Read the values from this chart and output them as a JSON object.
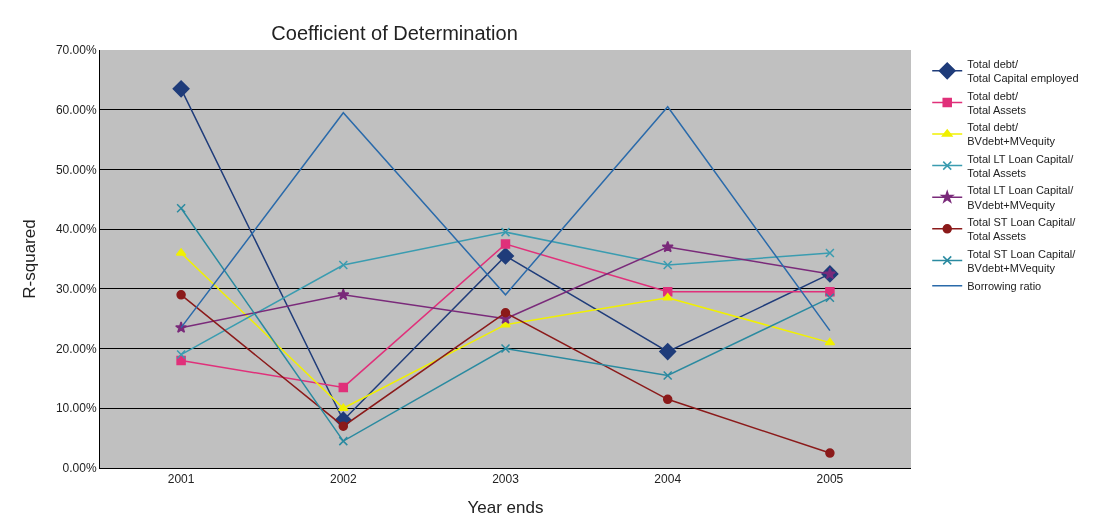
{
  "chart_data": {
    "type": "line",
    "title": "Coefficient of Determination",
    "xlabel": "Year ends",
    "ylabel": "R-squared",
    "categories": [
      "2001",
      "2002",
      "2003",
      "2004",
      "2005"
    ],
    "series": [
      {
        "name": "Total debt/ Total Capital employed",
        "color": "#1f3c7a",
        "marker": "diamond",
        "values": [
          63.5,
          8,
          35.5,
          19.5,
          32.5
        ]
      },
      {
        "name": "Total debt/ Total Assets",
        "color": "#e0307a",
        "marker": "square",
        "values": [
          18,
          13.5,
          37.5,
          29.5,
          29.5
        ]
      },
      {
        "name": "Total debt/ BVdebt+MVequity",
        "color": "#f0f000",
        "marker": "triangle",
        "values": [
          36,
          10,
          24,
          28.5,
          21
        ]
      },
      {
        "name": "Total LT Loan Capital/ Total Assets",
        "color": "#3a9cb0",
        "marker": "cross",
        "values": [
          19,
          34,
          39.5,
          34,
          36
        ]
      },
      {
        "name": "Total LT Loan Capital/ BVdebt+MVequity",
        "color": "#7a2a7a",
        "marker": "star",
        "values": [
          23.5,
          29,
          25,
          37,
          32.5
        ]
      },
      {
        "name": "Total ST Loan Capital/ Total Assets",
        "color": "#8b1a1a",
        "marker": "circle",
        "values": [
          29,
          7,
          26,
          11.5,
          2.5
        ]
      },
      {
        "name": "Total ST Loan Capital/ BVdebt+MVequity",
        "color": "#2a8aa0",
        "marker": "cross",
        "values": [
          43.5,
          4.5,
          20,
          15.5,
          28.5
        ]
      },
      {
        "name": "Borrowing ratio",
        "color": "#2a6aaa",
        "marker": "none",
        "values": [
          23.5,
          59.5,
          29,
          60.5,
          23
        ]
      }
    ],
    "ylim": [
      0,
      70
    ],
    "yticks": [
      {
        "value": 0,
        "label": "0.00%"
      },
      {
        "value": 10,
        "label": "10.00%"
      },
      {
        "value": 20,
        "label": "20.00%"
      },
      {
        "value": 30,
        "label": "30.00%"
      },
      {
        "value": 40,
        "label": "40.00%"
      },
      {
        "value": 50,
        "label": "50.00%"
      },
      {
        "value": 60,
        "label": "60.00%"
      },
      {
        "value": 70,
        "label": "70.00%"
      }
    ],
    "grid": "y",
    "legend": "right"
  }
}
